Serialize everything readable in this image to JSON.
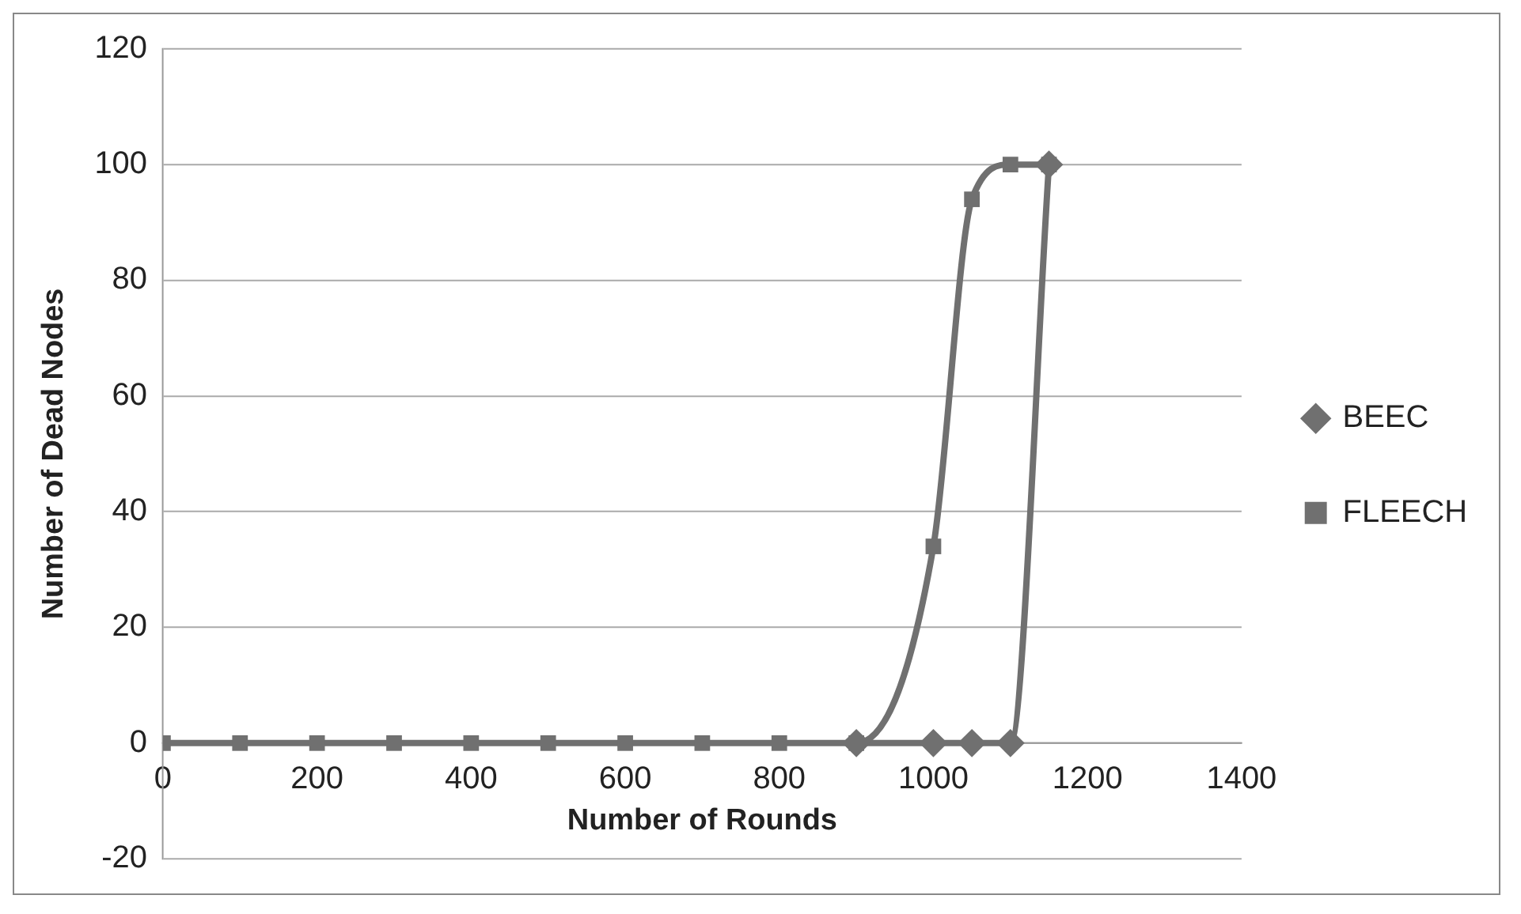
{
  "chart_data": {
    "type": "line",
    "xlabel": "Number of Rounds",
    "ylabel": "Number of Dead Nodes",
    "xlim": [
      0,
      1400
    ],
    "xticks": [
      0,
      200,
      400,
      600,
      800,
      1000,
      1200,
      1400
    ],
    "ylim": [
      -20,
      120
    ],
    "yticks": [
      -20,
      0,
      20,
      40,
      60,
      80,
      100,
      120
    ],
    "grid": "y",
    "legend": "right",
    "series": [
      {
        "name": "BEEC",
        "color": "#707070",
        "marker": "diamond",
        "x": [
          900,
          1000,
          1050,
          1100,
          1150
        ],
        "values": [
          0,
          0,
          0,
          0,
          100
        ]
      },
      {
        "name": "FLEECH",
        "color": "#707070",
        "marker": "square",
        "x": [
          0,
          100,
          200,
          300,
          400,
          500,
          600,
          700,
          800,
          900,
          1000,
          1050,
          1100,
          1150
        ],
        "values": [
          0,
          0,
          0,
          0,
          0,
          0,
          0,
          0,
          0,
          0,
          34,
          94,
          100,
          100
        ]
      }
    ]
  }
}
